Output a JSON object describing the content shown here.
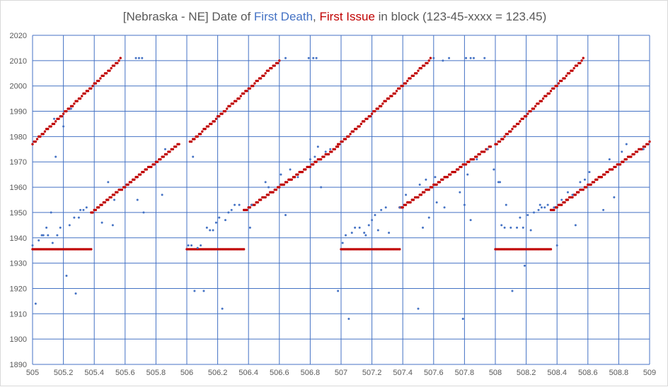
{
  "chart_data": {
    "type": "scatter",
    "title": {
      "prefix": "[Nebraska - NE] Date of ",
      "death_label": "First Death",
      "separator": ", ",
      "issue_label": "First Issue",
      "suffix": " in block (123-45-xxxx = 123.45)"
    },
    "xlabel": "",
    "ylabel": "",
    "xlim": [
      505,
      509
    ],
    "ylim": [
      1890,
      2020
    ],
    "x_ticks": [
      505,
      505.2,
      505.4,
      505.6,
      505.8,
      506,
      506.2,
      506.4,
      506.6,
      506.8,
      507,
      507.2,
      507.4,
      507.6,
      507.8,
      508,
      508.2,
      508.4,
      508.6,
      508.8,
      509
    ],
    "x_tick_labels": [
      "505",
      "505.2",
      "505.4",
      "505.6",
      "505.8",
      "506",
      "506.2",
      "506.4",
      "506.6",
      "506.8",
      "507",
      "507.2",
      "507.4",
      "507.6",
      "507.8",
      "508",
      "508.2",
      "508.4",
      "508.6",
      "508.8",
      "509"
    ],
    "y_ticks": [
      1890,
      1900,
      1910,
      1920,
      1930,
      1940,
      1950,
      1960,
      1970,
      1980,
      1990,
      2000,
      2010,
      2020
    ],
    "y_tick_labels": [
      "1890",
      "1900",
      "1910",
      "1920",
      "1930",
      "1940",
      "1950",
      "1960",
      "1970",
      "1980",
      "1990",
      "2000",
      "2010",
      "2020"
    ],
    "grid": true,
    "legend": "none",
    "colors": {
      "first_death": "#4472c4",
      "first_issue": "#c00000",
      "grid": "#4472c4",
      "text": "#595959"
    },
    "series": [
      {
        "name": "First Issue",
        "color": "#c00000",
        "segments": [
          {
            "kind": "flat",
            "x_start": 505.0,
            "x_end": 505.38,
            "step": 0.01,
            "y": 1935.5
          },
          {
            "kind": "line",
            "x_start": 505.0,
            "x_end": 505.57,
            "step": 0.01,
            "y_start": 1977.3,
            "y_end": 2010.5
          },
          {
            "kind": "line",
            "x_start": 505.38,
            "x_end": 505.95,
            "step": 0.01,
            "y_start": 1950,
            "y_end": 1977
          },
          {
            "kind": "flat",
            "x_start": 506.0,
            "x_end": 506.37,
            "step": 0.01,
            "y": 1935.5
          },
          {
            "kind": "line",
            "x_start": 506.02,
            "x_end": 506.6,
            "step": 0.01,
            "y_start": 1977.5,
            "y_end": 2010
          },
          {
            "kind": "line",
            "x_start": 506.37,
            "x_end": 506.98,
            "step": 0.01,
            "y_start": 1950.5,
            "y_end": 1976
          },
          {
            "kind": "flat",
            "x_start": 507.0,
            "x_end": 507.38,
            "step": 0.01,
            "y": 1935.5
          },
          {
            "kind": "line",
            "x_start": 506.98,
            "x_end": 507.58,
            "step": 0.01,
            "y_start": 1976.5,
            "y_end": 2010.5
          },
          {
            "kind": "line",
            "x_start": 507.38,
            "x_end": 507.97,
            "step": 0.01,
            "y_start": 1951.5,
            "y_end": 1976
          },
          {
            "kind": "flat",
            "x_start": 508.0,
            "x_end": 508.36,
            "step": 0.01,
            "y": 1935.5
          },
          {
            "kind": "line",
            "x_start": 508.0,
            "x_end": 508.57,
            "step": 0.01,
            "y_start": 1976.5,
            "y_end": 2010.5
          },
          {
            "kind": "line",
            "x_start": 508.36,
            "x_end": 509.0,
            "step": 0.01,
            "y_start": 1950.5,
            "y_end": 1977.5
          }
        ]
      },
      {
        "name": "First Death",
        "color": "#4472c4",
        "points": [
          [
            505.0,
            1937
          ],
          [
            505.02,
            1914
          ],
          [
            505.04,
            1939
          ],
          [
            505.06,
            1941
          ],
          [
            505.07,
            1941
          ],
          [
            505.09,
            1944
          ],
          [
            505.1,
            1941
          ],
          [
            505.12,
            1950
          ],
          [
            505.13,
            1938
          ],
          [
            505.14,
            1987
          ],
          [
            505.15,
            1972
          ],
          [
            505.16,
            1941
          ],
          [
            505.18,
            1944
          ],
          [
            505.2,
            1984
          ],
          [
            505.22,
            1925
          ],
          [
            505.24,
            1945
          ],
          [
            505.25,
            1991
          ],
          [
            505.27,
            1948
          ],
          [
            505.28,
            1918
          ],
          [
            505.3,
            1948
          ],
          [
            505.31,
            1951
          ],
          [
            505.33,
            1951
          ],
          [
            505.35,
            1952
          ],
          [
            505.45,
            1946
          ],
          [
            505.49,
            1962
          ],
          [
            505.52,
            1945
          ],
          [
            505.53,
            1955
          ],
          [
            505.68,
            1955
          ],
          [
            505.72,
            1950
          ],
          [
            505.67,
            2011
          ],
          [
            505.69,
            2011
          ],
          [
            505.71,
            2011
          ],
          [
            505.84,
            1957
          ],
          [
            505.86,
            1975
          ],
          [
            506.01,
            1937
          ],
          [
            506.03,
            1937
          ],
          [
            506.04,
            1972
          ],
          [
            506.05,
            1919
          ],
          [
            506.07,
            1936
          ],
          [
            506.09,
            1937
          ],
          [
            506.11,
            1919
          ],
          [
            506.13,
            1944
          ],
          [
            506.15,
            1943
          ],
          [
            506.17,
            1943
          ],
          [
            506.19,
            1946
          ],
          [
            506.21,
            1948
          ],
          [
            506.23,
            1912
          ],
          [
            506.25,
            1947
          ],
          [
            506.27,
            1950
          ],
          [
            506.29,
            1951
          ],
          [
            506.31,
            1953
          ],
          [
            506.34,
            1953
          ],
          [
            506.41,
            1944
          ],
          [
            506.42,
            1953
          ],
          [
            506.51,
            1962
          ],
          [
            506.53,
            1960
          ],
          [
            506.61,
            1965
          ],
          [
            506.64,
            1949
          ],
          [
            506.64,
            2011
          ],
          [
            506.67,
            1967
          ],
          [
            506.72,
            1964
          ],
          [
            506.79,
            2011
          ],
          [
            506.82,
            2011
          ],
          [
            506.84,
            2011
          ],
          [
            506.8,
            1971
          ],
          [
            506.83,
            1972
          ],
          [
            506.85,
            1976
          ],
          [
            506.87,
            1960
          ],
          [
            506.9,
            1974
          ],
          [
            506.93,
            1975
          ],
          [
            506.98,
            1919
          ],
          [
            507.01,
            1938
          ],
          [
            507.03,
            1941
          ],
          [
            507.05,
            1908
          ],
          [
            507.07,
            1942
          ],
          [
            507.09,
            1944
          ],
          [
            507.12,
            1944
          ],
          [
            507.15,
            1942
          ],
          [
            507.16,
            1941
          ],
          [
            507.18,
            1945
          ],
          [
            507.2,
            1947
          ],
          [
            507.22,
            1949
          ],
          [
            507.24,
            1943
          ],
          [
            507.26,
            1951
          ],
          [
            507.29,
            1952
          ],
          [
            507.31,
            1942
          ],
          [
            507.38,
            1952
          ],
          [
            507.42,
            1957
          ],
          [
            507.5,
            1912
          ],
          [
            507.51,
            1961
          ],
          [
            507.53,
            1944
          ],
          [
            507.55,
            1963
          ],
          [
            507.57,
            1948
          ],
          [
            507.61,
            1964
          ],
          [
            507.62,
            1954
          ],
          [
            507.67,
            1952
          ],
          [
            507.6,
            2011
          ],
          [
            507.66,
            2010
          ],
          [
            507.7,
            2011
          ],
          [
            507.77,
            1958
          ],
          [
            507.79,
            1908
          ],
          [
            507.8,
            1953
          ],
          [
            507.82,
            1965
          ],
          [
            507.84,
            1947
          ],
          [
            507.88,
            1971
          ],
          [
            507.81,
            2011
          ],
          [
            507.84,
            2011
          ],
          [
            507.86,
            2011
          ],
          [
            507.93,
            2011
          ],
          [
            507.95,
            1975
          ],
          [
            507.99,
            1967
          ],
          [
            508.02,
            1962
          ],
          [
            508.03,
            1962
          ],
          [
            508.04,
            1945
          ],
          [
            508.06,
            1944
          ],
          [
            508.07,
            1953
          ],
          [
            508.1,
            1944
          ],
          [
            508.11,
            1919
          ],
          [
            508.14,
            1944
          ],
          [
            508.16,
            1948
          ],
          [
            508.18,
            1944
          ],
          [
            508.19,
            1929
          ],
          [
            508.21,
            1949
          ],
          [
            508.23,
            1943
          ],
          [
            508.25,
            1950
          ],
          [
            508.28,
            1951
          ],
          [
            508.29,
            1953
          ],
          [
            508.3,
            1952
          ],
          [
            508.32,
            1952
          ],
          [
            508.34,
            1953
          ],
          [
            508.38,
            1952
          ],
          [
            508.4,
            1937
          ],
          [
            508.43,
            1955
          ],
          [
            508.47,
            1958
          ],
          [
            508.5,
            1957
          ],
          [
            508.52,
            1945
          ],
          [
            508.55,
            1962
          ],
          [
            508.58,
            1963
          ],
          [
            508.61,
            1966
          ],
          [
            508.7,
            1951
          ],
          [
            508.74,
            1971
          ],
          [
            508.77,
            1956
          ],
          [
            508.82,
            1974
          ],
          [
            508.85,
            1977
          ],
          [
            508.96,
            1975
          ]
        ]
      }
    ]
  }
}
